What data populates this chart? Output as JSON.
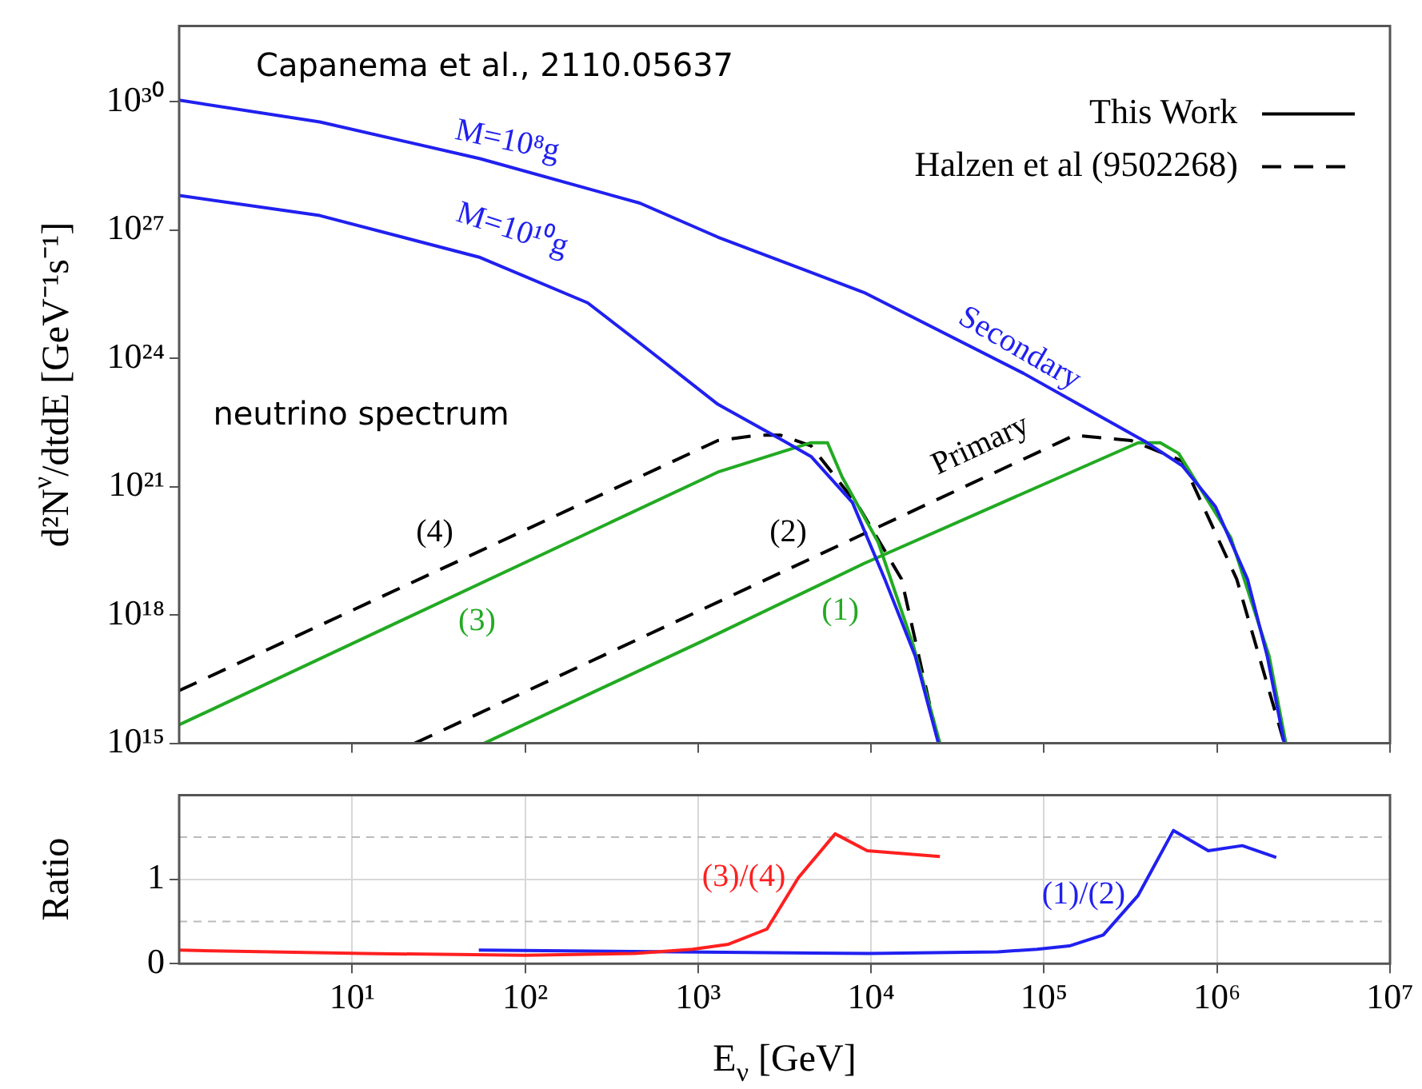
{
  "chart_data": [
    {
      "type": "line",
      "title": "Capanema et al., 2110.05637",
      "ylabel": "d²N$^{ν}$/dtdE [GeV⁻¹s⁻¹]",
      "log": "xy",
      "xlim": [
        1,
        10000000
      ],
      "ylim": [
        1000000000000000.0,
        6e+31
      ],
      "xticks": [
        {
          "value": 10,
          "label": null
        },
        {
          "value": 100,
          "label": null
        },
        {
          "value": 1000,
          "label": null
        },
        {
          "value": 10000,
          "label": null
        },
        {
          "value": 100000,
          "label": null
        },
        {
          "value": 1000000,
          "label": null
        },
        {
          "value": 10000000,
          "label": null
        }
      ],
      "yticks": [
        {
          "value": 1000000000000000.0,
          "label": "10¹⁵"
        },
        {
          "value": 1e+18,
          "label": "10¹⁸"
        },
        {
          "value": 1e+21,
          "label": "10²¹"
        },
        {
          "value": 1e+24,
          "label": "10²⁴"
        },
        {
          "value": 1e+27,
          "label": "10²⁷"
        },
        {
          "value": 1e+30,
          "label": "10³⁰"
        }
      ],
      "tick_labels": "y",
      "legend": "top right",
      "series": [
        {
          "name": "This Work",
          "color": "#000000",
          "line_style": "solid"
        },
        {
          "name": "Halzen et al (9502268)",
          "color": "#000000",
          "line_style": "dashed"
        },
        {
          "color": "#2020f0",
          "line_style": "solid",
          "x": [
            1,
            6.5,
            55,
            460,
            1300,
            9100,
            76000,
            390000,
            630000,
            980000,
            1500000,
            1950000,
            2450000
          ],
          "values": [
            1.1e+30,
            3.4e+29,
            4.7e+28,
            4.3e+27,
            6.9e+26,
            3.5e+25,
            4.5e+23,
            1.1e+22,
            3.1e+21,
            3.4e+20,
            6.9e+18,
            1.1e+17,
            1000000000000000.0
          ]
        },
        {
          "color": "#2020f0",
          "line_style": "solid",
          "x": [
            1,
            6.5,
            55,
            230,
            460,
            1300,
            3100,
            4500,
            7800,
            12000,
            18000,
            24500
          ],
          "values": [
            6.5e+27,
            2.2e+27,
            2.3e+26,
            2e+25,
            2.3e+24,
            8.5e+22,
            1.2e+22,
            5.1e+21,
            4.3e+20,
            6.9e+18,
            1.1e+17,
            1000000000000000.0
          ]
        },
        {
          "color": "#22aa22",
          "line_style": "solid",
          "x": [
            58,
            1070,
            9100,
            350000,
            470000,
            600000,
            1200000,
            2000000,
            2500000
          ],
          "values": [
            1000000000000000.0,
            2.5e+17,
            1.6e+19,
            1.07e+22,
            1.07e+22,
            6e+21,
            6.5e+19,
            1.1e+17,
            1000000000000000.0
          ]
        },
        {
          "color": "#22aa22",
          "line_style": "solid",
          "x": [
            1,
            1300,
            4500,
            5600,
            6800,
            11000,
            17500,
            25000
          ],
          "values": [
            2700000000000000.0,
            2.2e+21,
            1.07e+22,
            1.07e+22,
            1.7e+21,
            5e+19,
            2e+17,
            1000000000000000.0
          ]
        },
        {
          "color": "#000000",
          "line_style": "dashed",
          "x": [
            23,
            1400,
            150000,
            320000,
            630000,
            1300000,
            2450000
          ],
          "values": [
            1000000000000000.0,
            2.3e+18,
            1.6e+22,
            1.2e+22,
            4e+21,
            6.9e+18,
            1000000000000000.0
          ]
        },
        {
          "color": "#000000",
          "line_style": "dashed",
          "x": [
            1,
            1300,
            2200,
            3000,
            4500,
            8500,
            15000,
            24500
          ],
          "values": [
            1.7e+16,
            1.2e+22,
            1.6e+22,
            1.6e+22,
            9e+21,
            3.4e+20,
            6.9e+18,
            1000000000000000.0
          ]
        }
      ],
      "annotations": [
        "neutrino spectrum",
        "M=10⁸g",
        "M=10¹⁰g",
        "Secondary",
        "Primary",
        "(1)",
        "(2)",
        "(3)",
        "(4)"
      ]
    },
    {
      "type": "line",
      "xlabel": "E$_{ν}$ [GeV]",
      "ylabel": "Ratio",
      "log": "x",
      "xlim": [
        1,
        10000000
      ],
      "ylim": [
        0,
        2
      ],
      "xticks": [
        {
          "value": 10,
          "label": "10¹"
        },
        {
          "value": 100,
          "label": "10²"
        },
        {
          "value": 1000,
          "label": "10³"
        },
        {
          "value": 10000,
          "label": "10⁴"
        },
        {
          "value": 100000,
          "label": "10⁵"
        },
        {
          "value": 1000000,
          "label": "10⁶"
        },
        {
          "value": 10000000,
          "label": "10⁷"
        }
      ],
      "yticks": [
        0,
        1
      ],
      "grid": true,
      "ref_lines": [
        {
          "axis": "y",
          "value": 0.5,
          "color": "#bbbbbb",
          "line_style": "dashed"
        },
        {
          "axis": "y",
          "value": 1.5,
          "color": "#bbbbbb",
          "line_style": "dashed"
        }
      ],
      "series": [
        {
          "name": "(3)/(4)",
          "color": "#ff2020",
          "x": [
            1,
            11.5,
            100,
            430,
            930,
            1500,
            2500,
            3800,
            6200,
            9500,
            25000
          ],
          "values": [
            0.16,
            0.12,
            0.1,
            0.12,
            0.17,
            0.23,
            0.41,
            1.02,
            1.54,
            1.34,
            1.27
          ]
        },
        {
          "name": "(1)/(2)",
          "color": "#2020f0",
          "x": [
            54,
            780,
            9800,
            54000,
            91000,
            140000,
            220000,
            350000,
            560000,
            890000,
            1400000,
            2200000
          ],
          "values": [
            0.16,
            0.14,
            0.12,
            0.14,
            0.17,
            0.21,
            0.34,
            0.81,
            1.58,
            1.34,
            1.4,
            1.26
          ]
        }
      ]
    }
  ]
}
